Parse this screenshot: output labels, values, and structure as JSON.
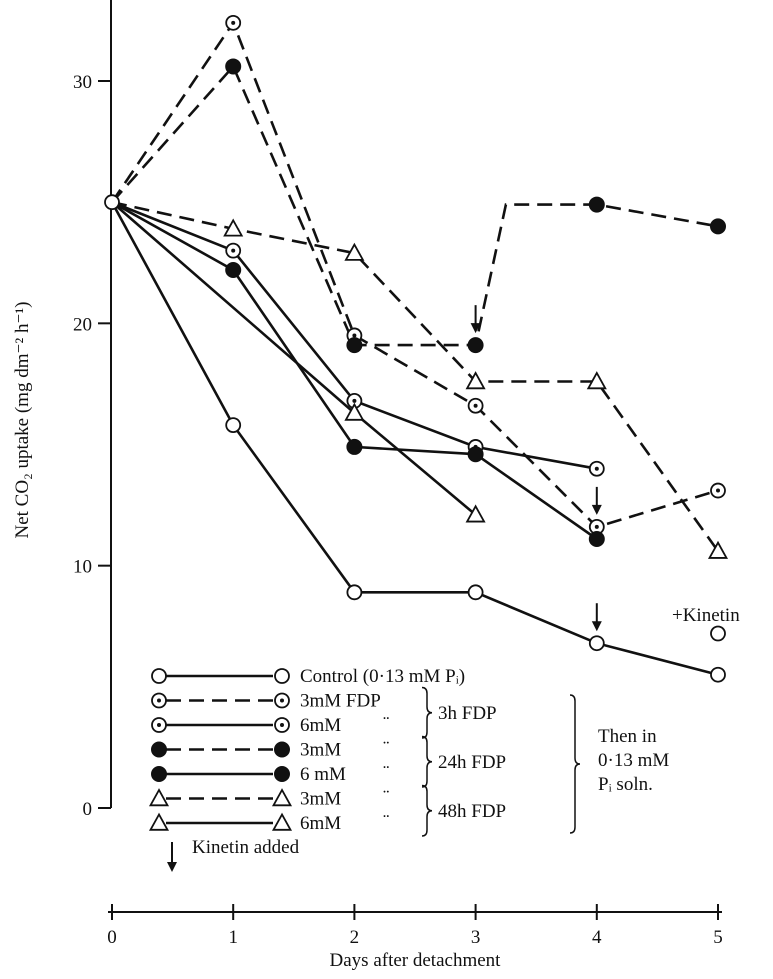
{
  "chart_data": {
    "type": "line",
    "xlabel": "Days after detachment",
    "ylabel": "Net CO₂ uptake (mg dm⁻² h⁻¹)",
    "xlim": [
      0,
      5
    ],
    "ylim": [
      0,
      33
    ],
    "x_ticks": [
      "0",
      "1",
      "2",
      "3",
      "4",
      "5"
    ],
    "y_ticks": [
      "0",
      "10",
      "20",
      "30"
    ],
    "x_tick_values": [
      0,
      1,
      2,
      3,
      4,
      5
    ],
    "y_tick_values": [
      0,
      10,
      20,
      30
    ],
    "grid": false,
    "series": [
      {
        "name": "Control (0·13 mM Pᵢ)",
        "marker": "open-circle",
        "line": "solid",
        "points": [
          [
            0,
            25
          ],
          [
            1,
            15.8
          ],
          [
            2,
            8.9
          ],
          [
            3,
            8.9
          ],
          [
            4,
            6.8
          ],
          [
            5,
            5.5
          ]
        ]
      },
      {
        "name": "3mM FDP",
        "group": "3h FDP",
        "marker": "dotted-circle",
        "line": "dashed",
        "points": [
          [
            0,
            25
          ],
          [
            1,
            32.4
          ],
          [
            2,
            19.5
          ],
          [
            3,
            16.6
          ],
          [
            4,
            11.6
          ],
          [
            5,
            13.1
          ]
        ]
      },
      {
        "name": "6mM",
        "group": "3h FDP",
        "marker": "dotted-circle",
        "line": "solid",
        "points": [
          [
            0,
            25
          ],
          [
            1,
            23
          ],
          [
            2,
            16.8
          ],
          [
            3,
            14.9
          ],
          [
            4,
            14
          ]
        ]
      },
      {
        "name": "3mM",
        "group": "24h FDP",
        "marker": "filled-circle",
        "line": "dashed",
        "points": [
          [
            0,
            25
          ],
          [
            1,
            30.6
          ],
          [
            2,
            19.1
          ],
          [
            3,
            19.1
          ],
          [
            3.25,
            24.9
          ],
          [
            4,
            24.9
          ],
          [
            5,
            24
          ]
        ]
      },
      {
        "name": "6mM",
        "group": "24h FDP",
        "marker": "filled-circle",
        "line": "solid",
        "points": [
          [
            0,
            25
          ],
          [
            1,
            22.2
          ],
          [
            2,
            14.9
          ],
          [
            3,
            14.6
          ],
          [
            4,
            11.1
          ]
        ]
      },
      {
        "name": "3mM",
        "group": "48h FDP",
        "marker": "open-triangle",
        "line": "dashed",
        "points": [
          [
            0,
            25
          ],
          [
            1,
            23.9
          ],
          [
            2,
            22.9
          ],
          [
            3,
            17.6
          ],
          [
            4,
            17.6
          ],
          [
            5,
            10.6
          ]
        ]
      },
      {
        "name": "6mM",
        "group": "48h FDP",
        "marker": "open-triangle",
        "line": "solid",
        "points": [
          [
            0,
            25
          ],
          [
            2,
            16.3
          ],
          [
            3,
            12.1
          ]
        ]
      }
    ],
    "extra_points": [
      {
        "label": "+Kinetin",
        "marker": "open-circle",
        "x": 5,
        "y": 7.2
      }
    ],
    "kinetin_arrows": [
      {
        "x": 3,
        "y": 19.1
      },
      {
        "x": 4,
        "y": 11.6
      },
      {
        "x": 4,
        "y": 6.8
      }
    ],
    "legend": {
      "placement": "bottom-left",
      "rows": [
        {
          "label": "Control (0·13 mM Pᵢ)",
          "marker": "open-circle",
          "line": "solid",
          "ditto": ""
        },
        {
          "label": "3mM  FDP",
          "marker": "dotted-circle",
          "line": "dashed",
          "ditto": ""
        },
        {
          "label": "6mM",
          "marker": "dotted-circle",
          "line": "solid",
          "ditto": "¨"
        },
        {
          "label": "3mM",
          "marker": "filled-circle",
          "line": "dashed",
          "ditto": "¨"
        },
        {
          "label": "6 mM",
          "marker": "filled-circle",
          "line": "solid",
          "ditto": "¨"
        },
        {
          "label": "3mM",
          "marker": "open-triangle",
          "line": "dashed",
          "ditto": "¨"
        },
        {
          "label": "6mM",
          "marker": "open-triangle",
          "line": "solid",
          "ditto": "¨"
        }
      ],
      "groups": [
        "3h FDP",
        "24h FDP",
        "48h FDP"
      ],
      "then_text": [
        "Then in",
        "0·13 mM",
        "Pᵢ soln."
      ],
      "arrow_note": "Kinetin added"
    },
    "annotations": [
      "+Kinetin"
    ]
  }
}
